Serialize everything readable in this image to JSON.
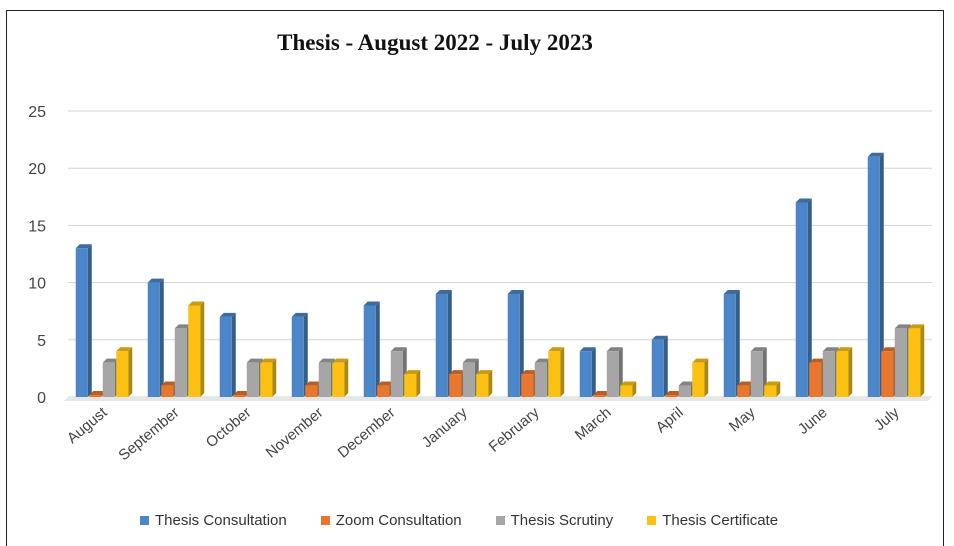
{
  "chart_data": {
    "type": "bar",
    "title": "Thesis - August 2022 - July 2023",
    "categories": [
      "August",
      "September",
      "October",
      "November",
      "December",
      "January",
      "February",
      "March",
      "April",
      "May",
      "June",
      "July"
    ],
    "ylim": [
      0,
      25
    ],
    "yticks": [
      0,
      5,
      10,
      15,
      20,
      25
    ],
    "grid": true,
    "legend_position": "bottom",
    "series": [
      {
        "name": "Thesis Consultation",
        "color": "#4a86c8",
        "values": [
          13,
          10,
          7,
          7,
          8,
          9,
          9,
          4,
          5,
          9,
          17,
          21
        ]
      },
      {
        "name": "Zoom Consultation",
        "color": "#e8762d",
        "values": [
          0,
          1,
          0,
          1,
          1,
          2,
          2,
          0,
          0,
          1,
          3,
          4
        ]
      },
      {
        "name": "Thesis Scrutiny",
        "color": "#a5a5a5",
        "values": [
          3,
          6,
          3,
          3,
          4,
          3,
          3,
          4,
          1,
          4,
          4,
          6
        ]
      },
      {
        "name": "Thesis Certificate",
        "color": "#fcc113",
        "values": [
          4,
          8,
          3,
          3,
          2,
          2,
          4,
          1,
          3,
          1,
          4,
          6
        ]
      }
    ]
  }
}
